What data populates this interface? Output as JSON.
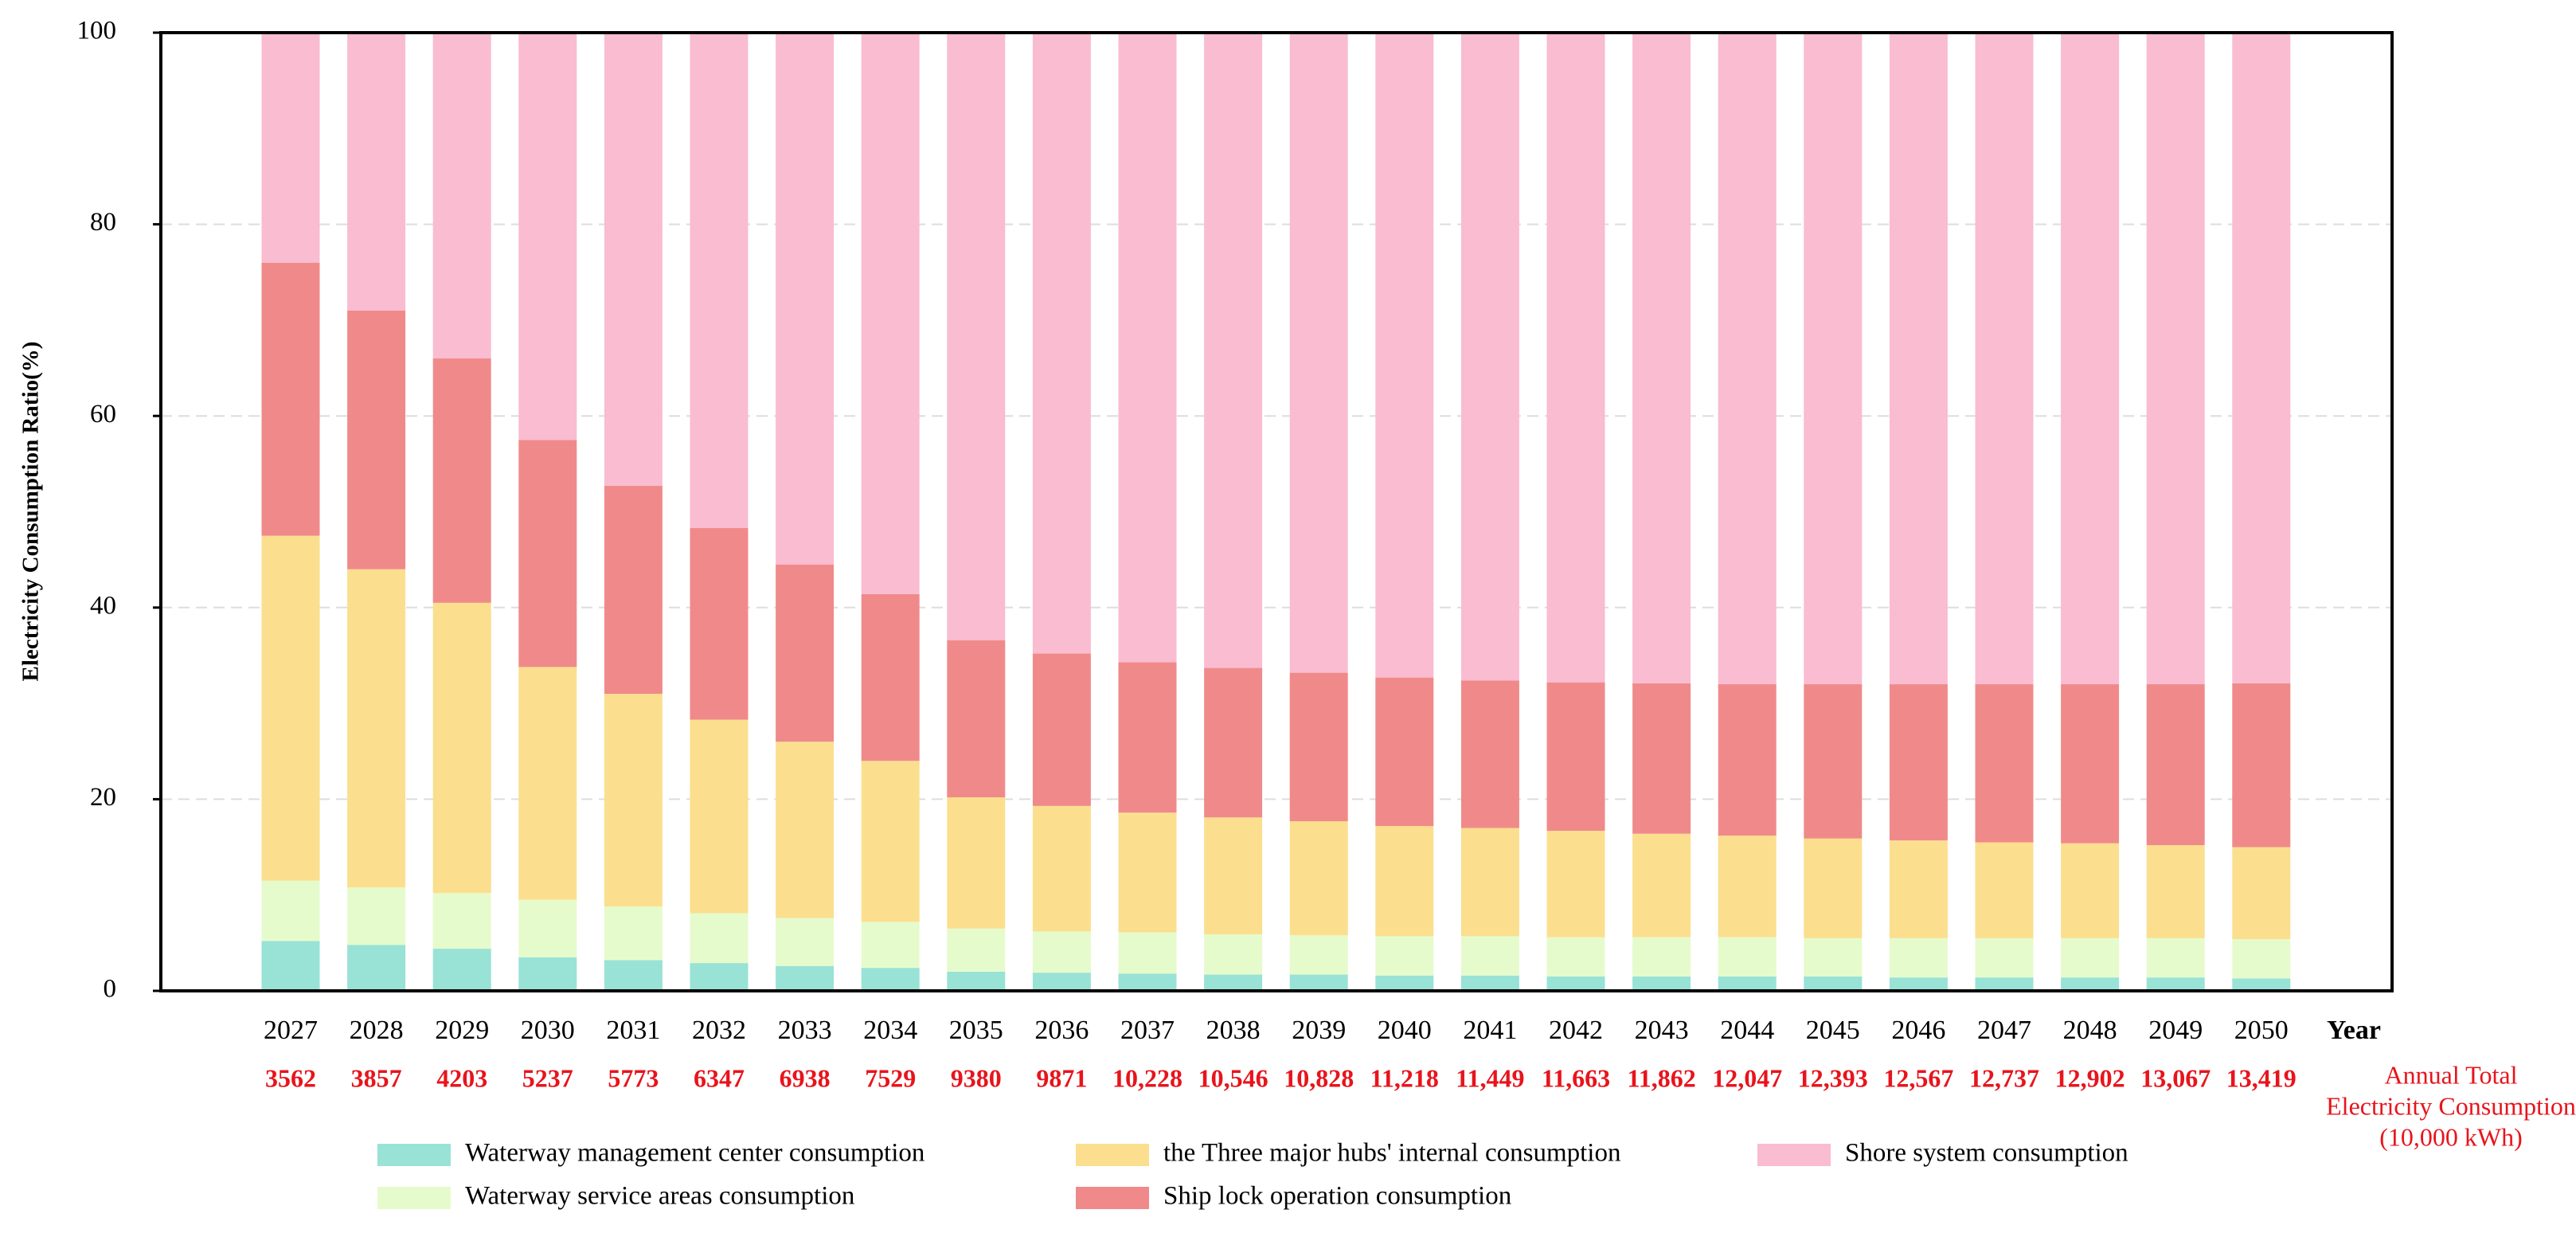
{
  "chart_data": {
    "type": "stacked_bar",
    "y_label": "Electricity Consumption Ratio(%)",
    "x_label": "Year",
    "categories": [
      "2027",
      "2028",
      "2029",
      "2030",
      "2031",
      "2032",
      "2033",
      "2034",
      "2035",
      "2036",
      "2037",
      "2038",
      "2039",
      "2040",
      "2041",
      "2042",
      "2043",
      "2044",
      "2045",
      "2046",
      "2047",
      "2048",
      "2049",
      "2050"
    ],
    "series": [
      {
        "name": "Waterway management center consumption",
        "color": "#99e2d6",
        "values": [
          5.2,
          4.8,
          4.4,
          3.5,
          3.2,
          2.9,
          2.6,
          2.4,
          2.0,
          1.9,
          1.8,
          1.7,
          1.7,
          1.6,
          1.6,
          1.5,
          1.5,
          1.5,
          1.5,
          1.4,
          1.4,
          1.4,
          1.4,
          1.3
        ]
      },
      {
        "name": "Waterway service areas consumption",
        "color": "#e6fbcc",
        "values": [
          6.3,
          6.0,
          5.8,
          6.0,
          5.6,
          5.2,
          5.0,
          4.8,
          4.5,
          4.3,
          4.3,
          4.2,
          4.1,
          4.1,
          4.1,
          4.1,
          4.1,
          4.1,
          4.0,
          4.1,
          4.1,
          4.1,
          4.1,
          4.1
        ]
      },
      {
        "name": "the Three major hubs' internal consumption",
        "color": "#fbdf8e",
        "values": [
          36.0,
          33.2,
          30.3,
          24.3,
          22.2,
          20.2,
          18.4,
          16.8,
          13.7,
          13.1,
          12.5,
          12.2,
          11.9,
          11.5,
          11.3,
          11.1,
          10.8,
          10.6,
          10.4,
          10.2,
          10.0,
          9.9,
          9.7,
          9.6
        ]
      },
      {
        "name": "Ship lock operation consumption",
        "color": "#f08a8a",
        "values": [
          28.5,
          27.0,
          25.5,
          23.7,
          21.7,
          20.0,
          18.5,
          17.4,
          16.4,
          15.9,
          15.7,
          15.6,
          15.5,
          15.5,
          15.4,
          15.5,
          15.7,
          15.8,
          16.1,
          16.3,
          16.5,
          16.6,
          16.8,
          17.1
        ]
      },
      {
        "name": "Shore system consumption",
        "color": "#f9bcd1",
        "values": [
          24.0,
          29.0,
          34.0,
          42.5,
          47.3,
          51.7,
          55.5,
          58.6,
          63.4,
          64.8,
          65.7,
          66.3,
          66.8,
          67.3,
          67.6,
          67.8,
          67.9,
          68.0,
          68.0,
          68.0,
          68.0,
          68.0,
          68.0,
          67.9
        ]
      }
    ],
    "annual_totals": {
      "label": [
        "Annual Total",
        "Electricity Consumption",
        "(10,000 kWh)"
      ],
      "color": "#e8141c",
      "values": [
        3562,
        3857,
        4203,
        5237,
        5773,
        6347,
        6938,
        7529,
        9380,
        9871,
        10228,
        10546,
        10828,
        11218,
        11449,
        11663,
        11862,
        12047,
        12393,
        12567,
        12737,
        12902,
        13067,
        13419
      ],
      "value_labels": [
        "3562",
        "3857",
        "4203",
        "5237",
        "5773",
        "6347",
        "6938",
        "7529",
        "9380",
        "9871",
        "10,228",
        "10,546",
        "10,828",
        "11,218",
        "11,449",
        "11,663",
        "11,862",
        "12,047",
        "12,393",
        "12,567",
        "12,737",
        "12,902",
        "13,067",
        "13,419"
      ]
    },
    "ylim": [
      0,
      100
    ],
    "yticks": [
      0,
      20,
      40,
      60,
      80,
      100
    ],
    "grid": true
  }
}
